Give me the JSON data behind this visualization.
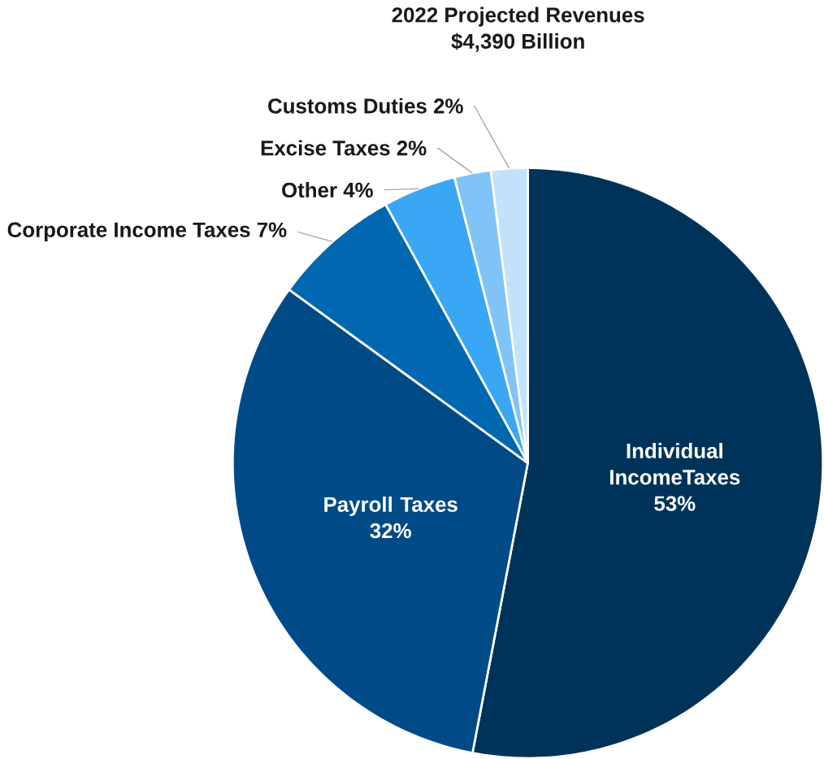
{
  "chart_data": {
    "type": "pie",
    "title": "2022 Projected Revenues",
    "subtitle": "$4,390 Billion",
    "categories": [
      "Individual IncomeTaxes",
      "Payroll Taxes",
      "Corporate Income Taxes",
      "Other",
      "Excise Taxes",
      "Customs Duties"
    ],
    "values": [
      53,
      32,
      7,
      4,
      2,
      2
    ],
    "colors": [
      "#003359",
      "#004b87",
      "#0067b1",
      "#3aa7f5",
      "#7fc3f7",
      "#c2e2fb"
    ],
    "value_labels": [
      "53%",
      "32%",
      "7%",
      "4%",
      "2%",
      "2%"
    ]
  }
}
